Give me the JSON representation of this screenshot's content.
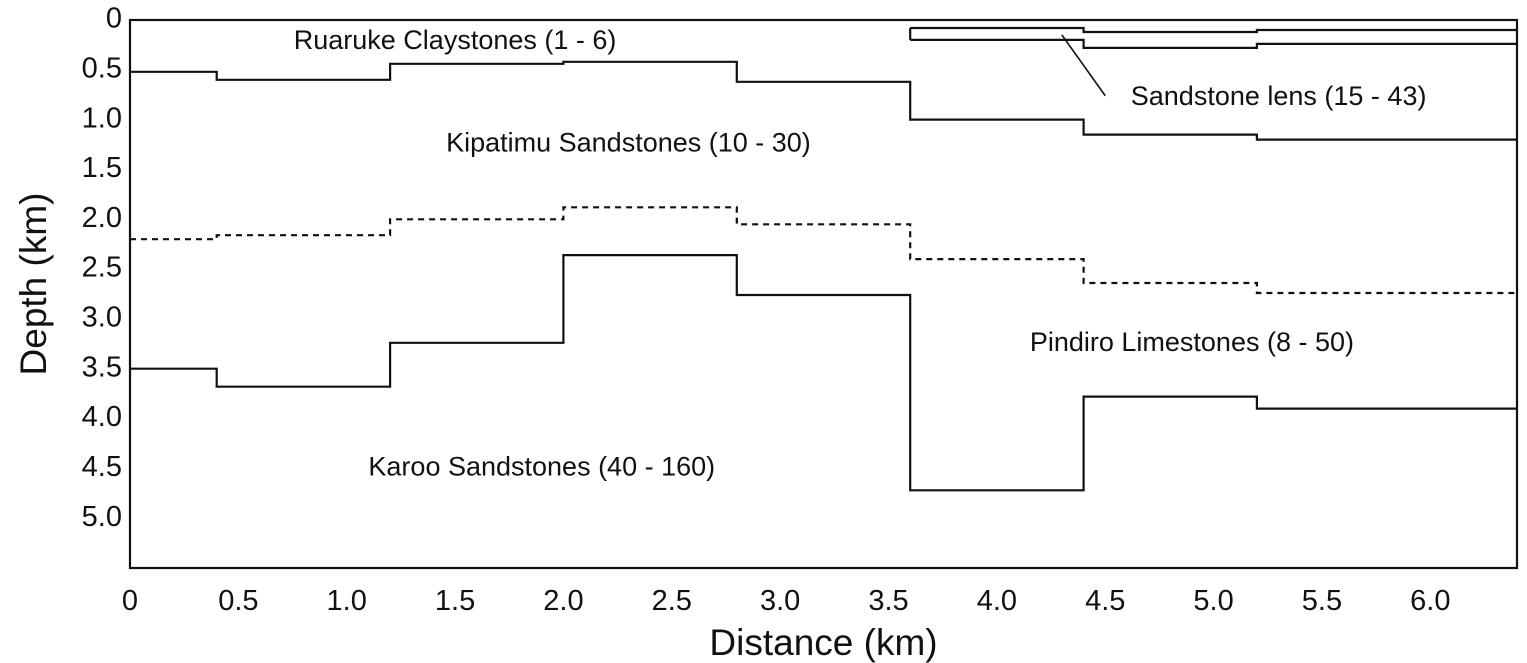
{
  "figure": {
    "type": "geological-cross-section",
    "x_axis": {
      "title": "Distance (km)",
      "range": [
        0,
        6.4
      ],
      "ticks": [
        "0",
        "0.5",
        "1.0",
        "1.5",
        "2.0",
        "2.5",
        "3.0",
        "3.5",
        "4.0",
        "4.5",
        "5.0",
        "5.5",
        "6.0"
      ]
    },
    "y_axis": {
      "title": "Depth (km)",
      "range": [
        0,
        5.5
      ],
      "inverted": true,
      "ticks": [
        "0",
        "0.5",
        "1.0",
        "1.5",
        "2.0",
        "2.5",
        "3.0",
        "3.5",
        "4.0",
        "4.5",
        "5.0"
      ]
    },
    "units": [
      {
        "name": "Ruaruke Claystones (1 - 6)",
        "x": 1.5,
        "depth": 0.22
      },
      {
        "name": "Kipatimu Sandstones (10 - 30)",
        "x": 2.3,
        "depth": 1.25
      },
      {
        "name": "Sandstone lens (15 - 43)",
        "x": 5.3,
        "depth": 0.78
      },
      {
        "name": "Pindiro Limestones (8 - 50)",
        "x": 4.9,
        "depth": 3.25
      },
      {
        "name": "Karoo Sandstones (40 - 160)",
        "x": 1.9,
        "depth": 4.5
      }
    ],
    "leader": {
      "from": [
        4.5,
        0.76
      ],
      "to": [
        4.3,
        0.15
      ]
    },
    "boundaries": [
      {
        "name": "ruaruke-base-boundary",
        "style": "solid",
        "steps": [
          {
            "x1": 0,
            "x2": 0.4,
            "depth": 0.52
          },
          {
            "x1": 0.4,
            "x2": 1.2,
            "depth": 0.6
          },
          {
            "x1": 1.2,
            "x2": 2.0,
            "depth": 0.44
          },
          {
            "x1": 2.0,
            "x2": 2.8,
            "depth": 0.42
          },
          {
            "x1": 2.8,
            "x2": 3.6,
            "depth": 0.62
          },
          {
            "x1": 3.6,
            "x2": 4.4,
            "depth": 1.0
          },
          {
            "x1": 4.4,
            "x2": 5.2,
            "depth": 1.15
          },
          {
            "x1": 5.2,
            "x2": 6.4,
            "depth": 1.2
          }
        ]
      },
      {
        "name": "kipatimu-pindiro-boundary",
        "style": "dashed",
        "steps": [
          {
            "x1": 0,
            "x2": 0.4,
            "depth": 2.2
          },
          {
            "x1": 0.4,
            "x2": 1.2,
            "depth": 2.16
          },
          {
            "x1": 1.2,
            "x2": 2.0,
            "depth": 2.0
          },
          {
            "x1": 2.0,
            "x2": 2.8,
            "depth": 1.88
          },
          {
            "x1": 2.8,
            "x2": 3.6,
            "depth": 2.05
          },
          {
            "x1": 3.6,
            "x2": 4.4,
            "depth": 2.4
          },
          {
            "x1": 4.4,
            "x2": 5.2,
            "depth": 2.64
          },
          {
            "x1": 5.2,
            "x2": 6.4,
            "depth": 2.74
          }
        ]
      },
      {
        "name": "karoo-top-boundary",
        "style": "solid",
        "steps": [
          {
            "x1": 0,
            "x2": 0.4,
            "depth": 3.5
          },
          {
            "x1": 0.4,
            "x2": 1.2,
            "depth": 3.68
          },
          {
            "x1": 1.2,
            "x2": 2.0,
            "depth": 3.24
          },
          {
            "x1": 2.0,
            "x2": 2.8,
            "depth": 2.36
          },
          {
            "x1": 2.8,
            "x2": 3.6,
            "depth": 2.76
          },
          {
            "x1": 3.6,
            "x2": 4.4,
            "depth": 4.72
          },
          {
            "x1": 4.4,
            "x2": 5.2,
            "depth": 3.78
          },
          {
            "x1": 5.2,
            "x2": 6.4,
            "depth": 3.9
          }
        ]
      },
      {
        "name": "sandstone-lens-top-boundary",
        "style": "solid",
        "steps": [
          {
            "x1": 3.6,
            "x2": 4.4,
            "depth": 0.08
          },
          {
            "x1": 4.4,
            "x2": 5.2,
            "depth": 0.12
          },
          {
            "x1": 5.2,
            "x2": 6.4,
            "depth": 0.1
          }
        ]
      },
      {
        "name": "sandstone-lens-base-boundary",
        "style": "solid",
        "steps": [
          {
            "x1": 3.6,
            "x2": 4.4,
            "depth": 0.2
          },
          {
            "x1": 4.4,
            "x2": 5.2,
            "depth": 0.28
          },
          {
            "x1": 5.2,
            "x2": 6.4,
            "depth": 0.24
          }
        ]
      }
    ],
    "lens_closure": {
      "x": 3.6,
      "depth_top": 0.08,
      "depth_bottom": 0.2
    }
  }
}
